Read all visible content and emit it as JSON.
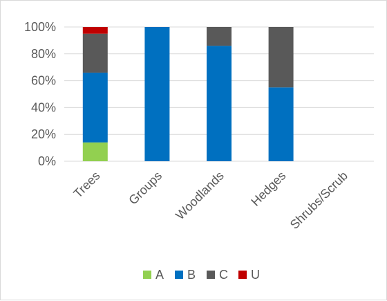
{
  "chart_data": {
    "type": "bar",
    "stacked": true,
    "categories": [
      "Trees",
      "Groups",
      "Woodlands",
      "Hedges",
      "Shrubs/Scrub"
    ],
    "series": [
      {
        "name": "A",
        "color": "#92d050",
        "values": [
          14,
          0,
          0,
          0,
          0
        ]
      },
      {
        "name": "B",
        "color": "#0070c0",
        "values": [
          52,
          100,
          86,
          55,
          0
        ]
      },
      {
        "name": "C",
        "color": "#595959",
        "values": [
          29,
          0,
          14,
          45,
          0
        ]
      },
      {
        "name": "U",
        "color": "#c00000",
        "values": [
          5,
          0,
          0,
          0,
          0
        ]
      }
    ],
    "ylim": [
      0,
      100
    ],
    "yticks": [
      "0%",
      "20%",
      "40%",
      "60%",
      "80%",
      "100%"
    ],
    "grid": true,
    "legend_position": "bottom"
  }
}
